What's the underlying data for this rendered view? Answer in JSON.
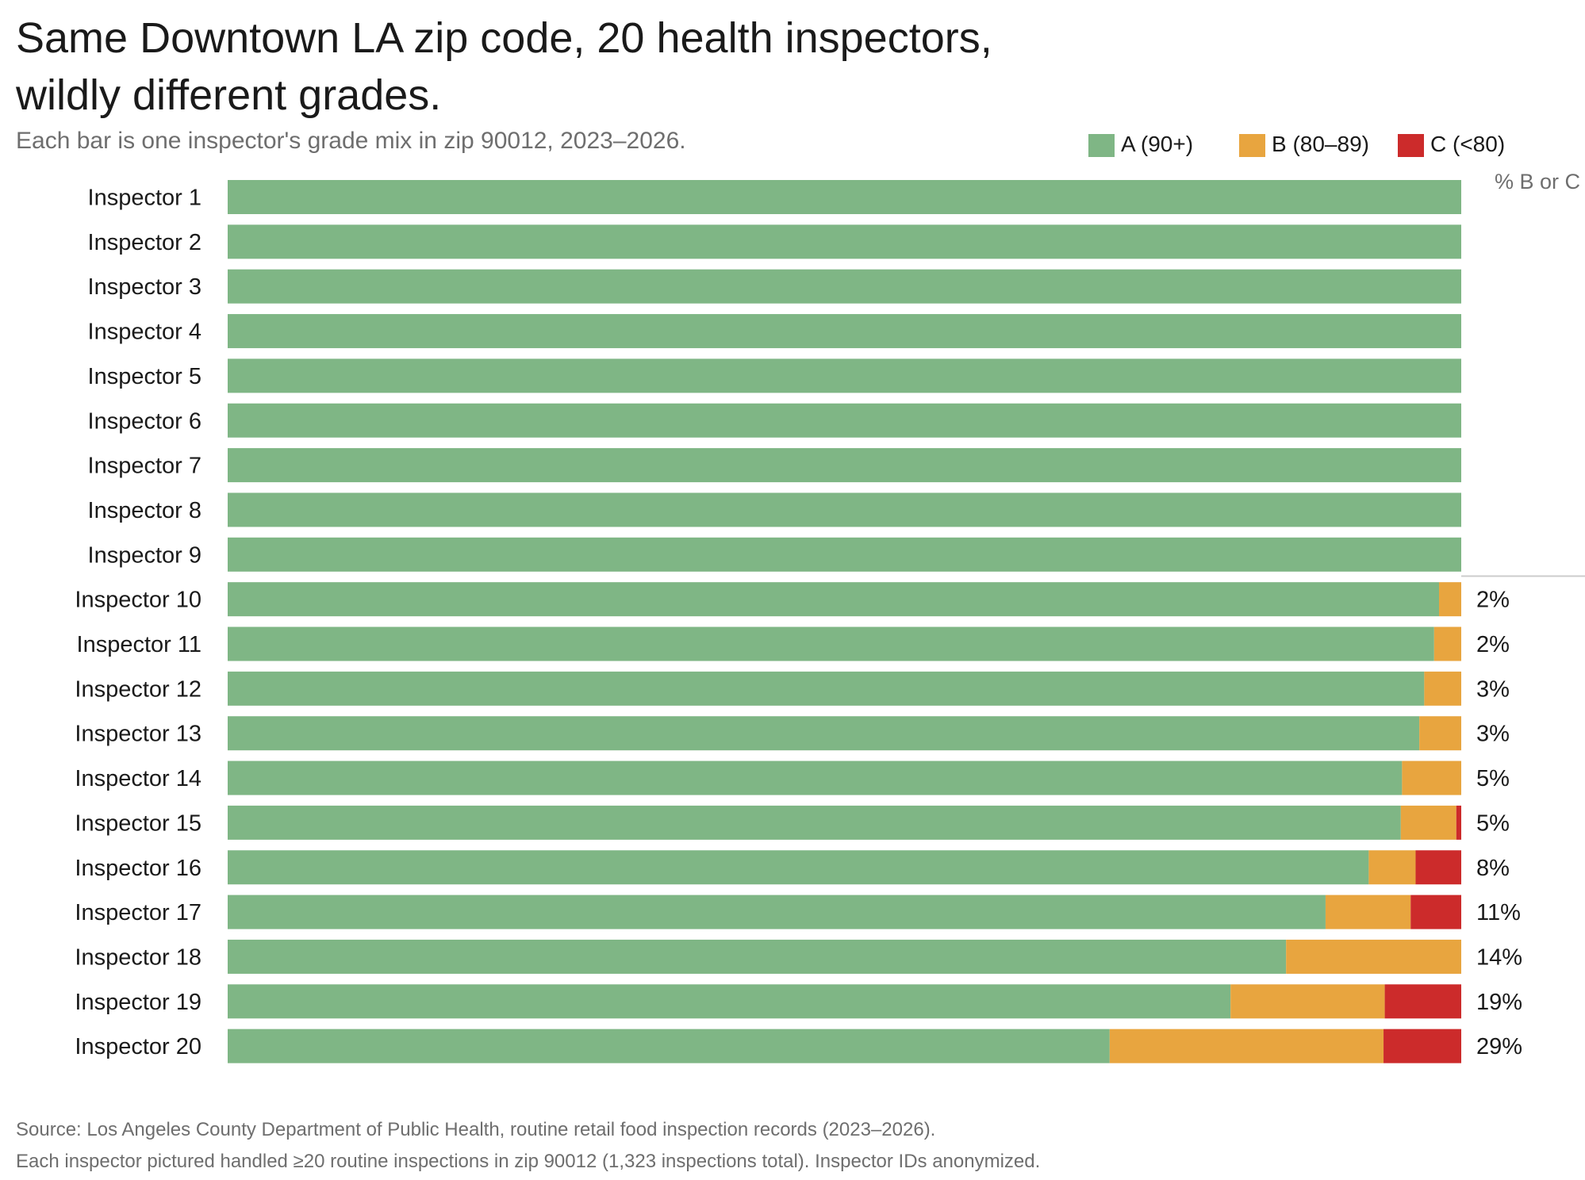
{
  "colors": {
    "A": "#7fb685",
    "B": "#e8a53f",
    "C": "#cc2b2b"
  },
  "chart_data": {
    "type": "bar",
    "orientation": "horizontal",
    "stacked": true,
    "normalized": true,
    "title_line1": "Same Downtown LA zip code, 20 health inspectors,",
    "title_line2": "wildly different grades.",
    "subtitle": "Each bar is one inspector's grade mix in zip 90012, 2023–2026.",
    "value_column_header": "% B or C",
    "legend": [
      {
        "key": "A",
        "label": "A (90+)"
      },
      {
        "key": "B",
        "label": "B (80–89)"
      },
      {
        "key": "C",
        "label": "C (<80)"
      }
    ],
    "categories": [
      "Inspector 1",
      "Inspector 2",
      "Inspector 3",
      "Inspector 4",
      "Inspector 5",
      "Inspector 6",
      "Inspector 7",
      "Inspector 8",
      "Inspector 9",
      "Inspector 10",
      "Inspector 11",
      "Inspector 12",
      "Inspector 13",
      "Inspector 14",
      "Inspector 15",
      "Inspector 16",
      "Inspector 17",
      "Inspector 18",
      "Inspector 19",
      "Inspector 20"
    ],
    "series": [
      {
        "name": "A (90+)",
        "key": "A",
        "values": [
          100,
          100,
          100,
          100,
          100,
          100,
          100,
          100,
          100,
          98.2,
          97.8,
          97.0,
          96.6,
          95.2,
          95.1,
          92.5,
          89.0,
          85.8,
          81.3,
          71.5
        ]
      },
      {
        "name": "B (80–89)",
        "key": "B",
        "values": [
          0,
          0,
          0,
          0,
          0,
          0,
          0,
          0,
          0,
          1.8,
          2.2,
          3.0,
          3.4,
          4.8,
          4.5,
          3.8,
          6.9,
          14.2,
          12.5,
          22.2
        ]
      },
      {
        "name": "C (<80)",
        "key": "C",
        "values": [
          0,
          0,
          0,
          0,
          0,
          0,
          0,
          0,
          0,
          0,
          0,
          0,
          0,
          0,
          0.4,
          3.7,
          4.1,
          0,
          6.2,
          6.3
        ]
      }
    ],
    "value_labels": [
      "",
      "",
      "",
      "",
      "",
      "",
      "",
      "",
      "",
      "2%",
      "2%",
      "3%",
      "3%",
      "5%",
      "5%",
      "8%",
      "11%",
      "14%",
      "19%",
      "29%"
    ],
    "xlim": [
      0,
      100
    ],
    "grid": false,
    "legend_position": "top-right"
  },
  "footer": {
    "source": "Source: Los Angeles County Department of Public Health, routine retail food inspection records (2023–2026).",
    "note": "Each inspector pictured handled ≥20 routine inspections in zip 90012 (1,323 inspections total). Inspector IDs anonymized."
  }
}
